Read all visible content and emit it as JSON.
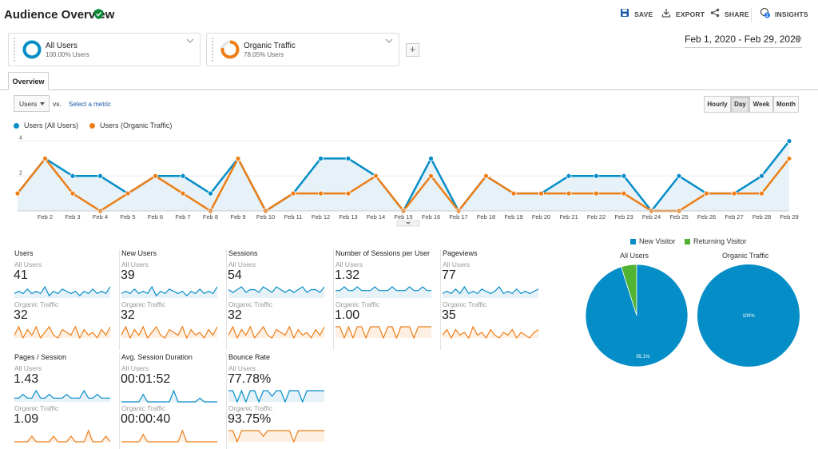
{
  "header": {
    "title": "Audience Overview",
    "save": "SAVE",
    "export": "EXPORT",
    "share": "SHARE",
    "insights": "INSIGHTS",
    "insights_badge": "2"
  },
  "segments": [
    {
      "name": "All Users",
      "sub": "100.00% Users",
      "color": "#058dc7",
      "fraction": 1.0
    },
    {
      "name": "Organic Traffic",
      "sub": "78.05% Users",
      "color": "#ed7e17",
      "fraction": 0.7805
    }
  ],
  "date_range": "Feb 1, 2020 - Feb 29, 2020",
  "tabs": [
    "Overview"
  ],
  "controls": {
    "metric": "Users",
    "vs": "vs.",
    "select_metric": "Select a metric",
    "granularity": [
      "Hourly",
      "Day",
      "Week",
      "Month"
    ],
    "granularity_selected": "Day"
  },
  "chart_data": {
    "type": "line",
    "y_ticks": [
      "2",
      "4"
    ],
    "ylim": [
      0,
      4.3
    ],
    "x_labels": [
      "Feb 2",
      "Feb 3",
      "Feb 4",
      "Feb 5",
      "Feb 6",
      "Feb 7",
      "Feb 8",
      "Feb 9",
      "Feb 10",
      "Feb 11",
      "Feb 12",
      "Feb 13",
      "Feb 14",
      "Feb 15",
      "Feb 16",
      "Feb 17",
      "Feb 18",
      "Feb 19",
      "Feb 20",
      "Feb 21",
      "Feb 22",
      "Feb 23",
      "Feb 24",
      "Feb 25",
      "Feb 26",
      "Feb 27",
      "Feb 28",
      "Feb 29"
    ],
    "series": [
      {
        "name": "Users (All Users)",
        "color": "#058dc7",
        "values": [
          1,
          3,
          2,
          2,
          1,
          2,
          2,
          1,
          3,
          0,
          1,
          3,
          3,
          2,
          0,
          3,
          0,
          2,
          1,
          1,
          2,
          2,
          2,
          0,
          2,
          1,
          1,
          2,
          4
        ]
      },
      {
        "name": "Users (Organic Traffic)",
        "color": "#ed7e17",
        "values": [
          1,
          3,
          1,
          0,
          1,
          2,
          1,
          0,
          3,
          0,
          1,
          1,
          1,
          2,
          0,
          2,
          0,
          2,
          1,
          1,
          1,
          1,
          1,
          0,
          0,
          1,
          1,
          1,
          3
        ]
      }
    ]
  },
  "metrics": [
    {
      "name": "Users",
      "seg1": "All Users",
      "v1": "41",
      "seg2": "Organic Traffic",
      "v2": "32",
      "s1": [
        2,
        3,
        2,
        4,
        2,
        3,
        2,
        5,
        1,
        3,
        2,
        4,
        3,
        2,
        3,
        1,
        3,
        2,
        4,
        2,
        3,
        2,
        5
      ],
      "s2": [
        1,
        4,
        0,
        3,
        1,
        4,
        0,
        2,
        4,
        1,
        0,
        3,
        2,
        1,
        4,
        0,
        3,
        1,
        2,
        0,
        3,
        1,
        4
      ]
    },
    {
      "name": "New Users",
      "seg1": "All Users",
      "v1": "39",
      "seg2": "Organic Traffic",
      "v2": "32",
      "s1": [
        2,
        3,
        2,
        4,
        2,
        3,
        2,
        5,
        1,
        3,
        2,
        4,
        3,
        2,
        3,
        1,
        3,
        2,
        4,
        2,
        3,
        2,
        5
      ],
      "s2": [
        1,
        4,
        0,
        3,
        1,
        4,
        0,
        2,
        4,
        1,
        0,
        3,
        2,
        1,
        4,
        0,
        3,
        1,
        2,
        0,
        3,
        1,
        4
      ]
    },
    {
      "name": "Sessions",
      "seg1": "All Users",
      "v1": "54",
      "seg2": "Organic Traffic",
      "v2": "32",
      "s1": [
        3,
        2,
        3,
        4,
        2,
        3,
        3,
        2,
        4,
        3,
        2,
        4,
        3,
        2,
        3,
        2,
        3,
        4,
        2,
        3,
        3,
        2,
        4
      ],
      "s2": [
        1,
        4,
        0,
        3,
        1,
        4,
        0,
        2,
        4,
        1,
        0,
        3,
        2,
        1,
        4,
        0,
        3,
        1,
        2,
        0,
        3,
        1,
        4
      ]
    },
    {
      "name": "Number of Sessions per User",
      "seg1": "All Users",
      "v1": "1.32",
      "seg2": "Organic Traffic",
      "v2": "1.00",
      "s1": [
        2,
        2,
        3,
        2,
        2,
        3,
        2,
        2,
        2,
        3,
        2,
        2,
        2,
        3,
        2,
        2,
        2,
        3,
        2,
        2,
        3,
        2,
        2
      ],
      "s2": [
        3,
        3,
        0,
        3,
        0,
        3,
        3,
        0,
        3,
        3,
        3,
        0,
        3,
        3,
        0,
        3,
        3,
        3,
        0,
        3,
        3,
        3,
        3
      ]
    },
    {
      "name": "Pageviews",
      "seg1": "All Users",
      "v1": "77",
      "seg2": "Organic Traffic",
      "v2": "35",
      "s1": [
        2,
        3,
        2,
        4,
        2,
        5,
        2,
        3,
        2,
        4,
        3,
        2,
        3,
        5,
        2,
        3,
        2,
        4,
        2,
        3,
        2,
        3,
        4
      ],
      "s2": [
        1,
        3,
        0,
        3,
        1,
        2,
        0,
        4,
        1,
        2,
        0,
        3,
        1,
        0,
        2,
        1,
        3,
        0,
        2,
        1,
        0,
        2,
        3
      ]
    },
    {
      "name": "Pages / Session",
      "seg1": "All Users",
      "v1": "1.43",
      "seg2": "Organic Traffic",
      "v2": "1.09",
      "s1": [
        1,
        1,
        2,
        1,
        1,
        3,
        1,
        1,
        2,
        1,
        1,
        1,
        2,
        1,
        1,
        1,
        3,
        1,
        1,
        2,
        1,
        1,
        1
      ],
      "s2": [
        0,
        0,
        0,
        0,
        1,
        0,
        0,
        0,
        0,
        1,
        0,
        0,
        0,
        1,
        0,
        0,
        0,
        2,
        0,
        0,
        0,
        1,
        0
      ]
    },
    {
      "name": "Avg. Session Duration",
      "seg1": "All Users",
      "v1": "00:01:52",
      "seg2": "Organic Traffic",
      "v2": "00:00:40",
      "s1": [
        0,
        0,
        0,
        0,
        0,
        2,
        0,
        0,
        0,
        0,
        0,
        0,
        3,
        0,
        0,
        0,
        0,
        0,
        1,
        0,
        0,
        0,
        0
      ],
      "s2": [
        0,
        0,
        0,
        0,
        0,
        2,
        0,
        0,
        0,
        0,
        0,
        0,
        0,
        0,
        3,
        0,
        0,
        0,
        0,
        0,
        0,
        0,
        0
      ]
    },
    {
      "name": "Bounce Rate",
      "seg1": "All Users",
      "v1": "77.78%",
      "seg2": "Organic Traffic",
      "v2": "93.75%",
      "s1": [
        2,
        2,
        0,
        2,
        0,
        2,
        2,
        0,
        2,
        2,
        1,
        2,
        2,
        0,
        2,
        2,
        2,
        0,
        2,
        2,
        2,
        2,
        2
      ],
      "s2": [
        2,
        2,
        0,
        2,
        2,
        2,
        2,
        2,
        1,
        2,
        2,
        2,
        2,
        2,
        2,
        0,
        2,
        2,
        2,
        2,
        2,
        2,
        2
      ]
    }
  ],
  "pie": {
    "legend": [
      {
        "label": "New Visitor",
        "color": "#058dc7"
      },
      {
        "label": "Returning Visitor",
        "color": "#50b432"
      }
    ],
    "charts": [
      {
        "title": "All Users",
        "new_fraction": 0.951,
        "label": "95.1%"
      },
      {
        "title": "Organic Traffic",
        "new_fraction": 1.0,
        "label": "100%"
      }
    ]
  }
}
